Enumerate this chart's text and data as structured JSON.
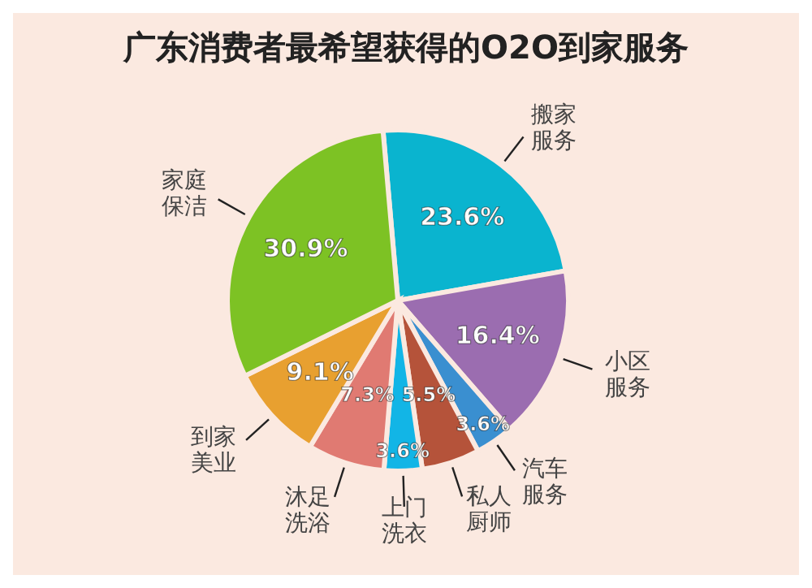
{
  "chart_data": {
    "type": "pie",
    "title": "广东消费者最希望获得的O2O到家服务",
    "categories": [
      "搬家服务",
      "小区服务",
      "汽车服务",
      "私人厨师",
      "上门洗衣",
      "沐足洗浴",
      "到家美业",
      "家庭保洁"
    ],
    "values": [
      23.6,
      16.4,
      3.6,
      5.5,
      3.6,
      7.3,
      9.1,
      30.9
    ],
    "value_labels": [
      "23.6%",
      "16.4%",
      "3.6%",
      "5.5%",
      "3.6%",
      "7.3%",
      "9.1%",
      "30.9%"
    ],
    "colors": [
      "#0ab4cf",
      "#9b6db0",
      "#3a8fd0",
      "#b5533a",
      "#12b5e6",
      "#e07a72",
      "#e8a030",
      "#7dc224"
    ]
  }
}
